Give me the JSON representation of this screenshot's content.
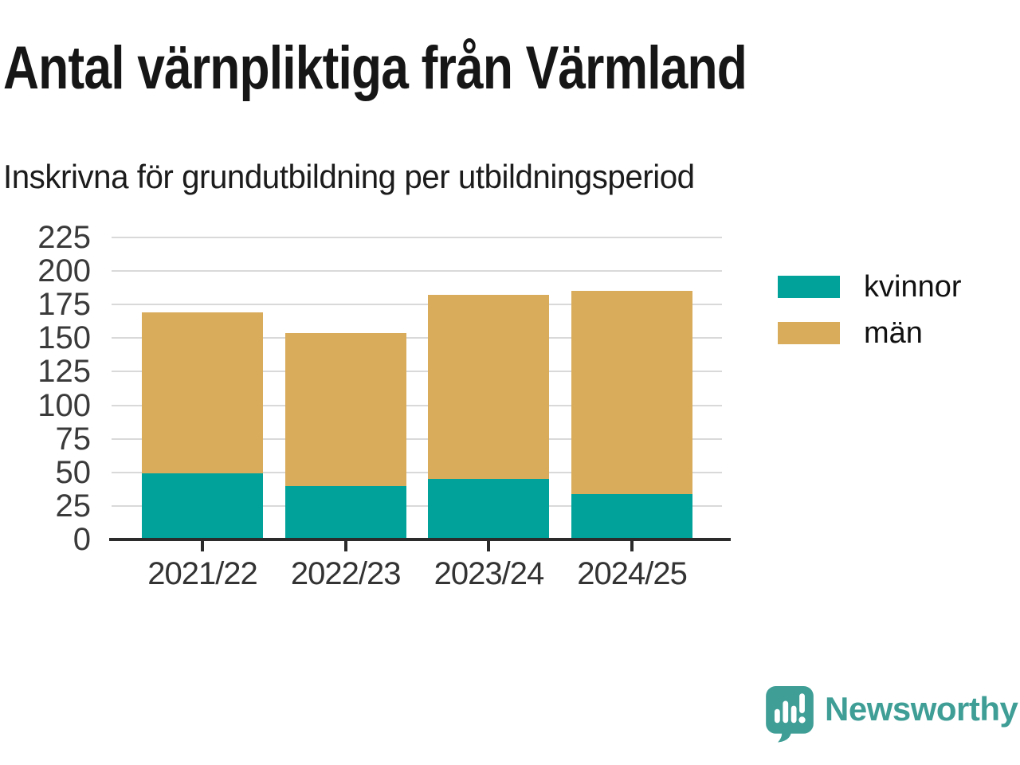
{
  "header": {
    "title": "Antal värnpliktiga från Värmland",
    "subtitle": "Inskrivna för grundutbildning per utbildningsperiod"
  },
  "legend": {
    "position": "right",
    "items": [
      {
        "label": "kvinnor",
        "color": "#00A29A"
      },
      {
        "label": "män",
        "color": "#D9AC5C"
      }
    ]
  },
  "branding": {
    "logo_text": "Newsworthy",
    "logo_color": "#3F9E96",
    "logo_icon": "speech-bubble-bar-chart-icon"
  },
  "colors": {
    "series_kvinnor": "#00A29A",
    "series_man": "#D9AC5C",
    "gridline": "#D9D9D9",
    "axis": "#2B2B2B",
    "title_text": "#161616",
    "tick_text": "#3A3A3A"
  },
  "chart_data": {
    "type": "bar",
    "stacked": true,
    "title": "Antal värnpliktiga från Värmland",
    "subtitle": "Inskrivna för grundutbildning per utbildningsperiod",
    "categories": [
      "2021/22",
      "2022/23",
      "2023/24",
      "2024/25"
    ],
    "series": [
      {
        "name": "kvinnor",
        "color": "#00A29A",
        "values": [
          49,
          40,
          45,
          34
        ]
      },
      {
        "name": "män",
        "color": "#D9AC5C",
        "values": [
          120,
          114,
          137,
          151
        ]
      }
    ],
    "totals": [
      169,
      154,
      182,
      185
    ],
    "xlabel": "",
    "ylabel": "",
    "ylim": [
      0,
      225
    ],
    "yticks": [
      0,
      25,
      50,
      75,
      100,
      125,
      150,
      175,
      200,
      225
    ],
    "grid": "horizontal",
    "legend_position": "right"
  }
}
